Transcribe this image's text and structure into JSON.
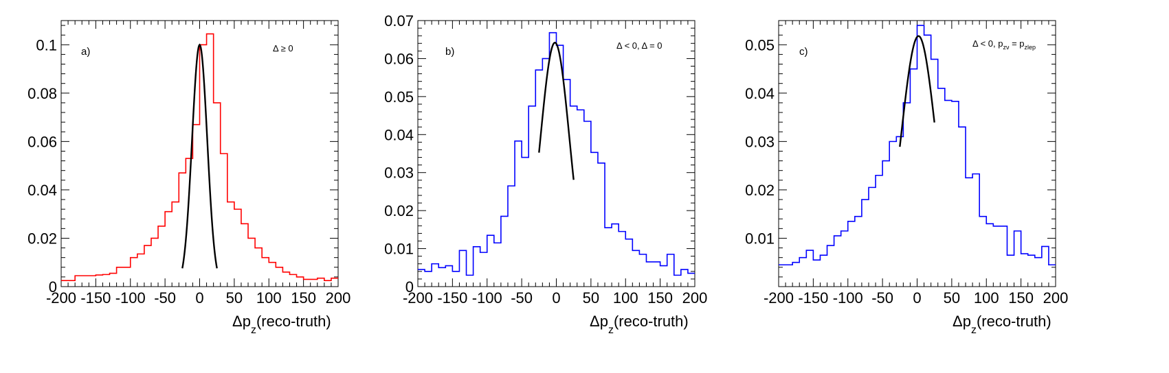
{
  "chart_data": [
    {
      "type": "histogram",
      "panel_label": "a)",
      "annotation": [
        {
          "text": "Δ ≥ 0",
          "sub": false
        }
      ],
      "xlabel": {
        "main": "Δp",
        "sub": "z",
        "rest": "(reco-truth)"
      },
      "xlim": [
        -200,
        200
      ],
      "ylim": [
        0,
        0.11
      ],
      "x_ticks": [
        "-200",
        "-150",
        "-100",
        "-50",
        "0",
        "50",
        "100",
        "150",
        "200"
      ],
      "x_tick_values": [
        -200,
        -150,
        -100,
        -50,
        0,
        50,
        100,
        150,
        200
      ],
      "y_ticks": [
        "0",
        "0.02",
        "0.04",
        "0.06",
        "0.08",
        "0.1"
      ],
      "y_tick_values": [
        0,
        0.02,
        0.04,
        0.06,
        0.08,
        0.1
      ],
      "line_color": "#ff0000",
      "bin_width": 10,
      "bin_start": -200,
      "values": [
        0.0025,
        0.0025,
        0.0045,
        0.0045,
        0.0045,
        0.0048,
        0.005,
        0.0055,
        0.008,
        0.008,
        0.012,
        0.0135,
        0.017,
        0.02,
        0.025,
        0.031,
        0.035,
        0.047,
        0.053,
        0.067,
        0.1,
        0.1045,
        0.076,
        0.055,
        0.035,
        0.032,
        0.026,
        0.02,
        0.016,
        0.012,
        0.01,
        0.008,
        0.006,
        0.005,
        0.004,
        0.003,
        0.003,
        0.0035,
        0.0025,
        0.0035
      ],
      "fit": {
        "mean": 0,
        "sigma": 11,
        "amplitude": 0.1,
        "range": [
          -25,
          25
        ]
      }
    },
    {
      "type": "histogram",
      "panel_label": "b)",
      "annotation": [
        {
          "text": "Δ < 0, Δ = 0",
          "sub": false
        }
      ],
      "xlabel": {
        "main": "Δp",
        "sub": "z",
        "rest": "(reco-truth)"
      },
      "xlim": [
        -200,
        200
      ],
      "ylim": [
        0,
        0.07
      ],
      "x_ticks": [
        "-200",
        "-150",
        "-100",
        "-50",
        "0",
        "50",
        "100",
        "150",
        "200"
      ],
      "x_tick_values": [
        -200,
        -150,
        -100,
        -50,
        0,
        50,
        100,
        150,
        200
      ],
      "y_ticks": [
        "0",
        "0.01",
        "0.02",
        "0.03",
        "0.04",
        "0.05",
        "0.06",
        "0.07"
      ],
      "y_tick_values": [
        0,
        0.01,
        0.02,
        0.03,
        0.04,
        0.05,
        0.06,
        0.07
      ],
      "line_color": "#0000ff",
      "bin_width": 10,
      "bin_start": -200,
      "values": [
        0.0045,
        0.004,
        0.006,
        0.005,
        0.0055,
        0.004,
        0.0095,
        0.003,
        0.0105,
        0.009,
        0.0135,
        0.0115,
        0.0185,
        0.0265,
        0.0383,
        0.034,
        0.0475,
        0.057,
        0.06,
        0.0668,
        0.0635,
        0.0545,
        0.0475,
        0.0465,
        0.0435,
        0.0353,
        0.0325,
        0.0155,
        0.0165,
        0.0145,
        0.0125,
        0.0095,
        0.0085,
        0.0065,
        0.0065,
        0.0055,
        0.0085,
        0.003,
        0.0045,
        0.0035
      ],
      "fit": {
        "mean": -2,
        "sigma": 21,
        "amplitude": 0.0642,
        "range": [
          -25,
          25
        ]
      }
    },
    {
      "type": "histogram",
      "panel_label": "c)",
      "annotation": [
        {
          "text": "Δ < 0, p",
          "sub": false
        },
        {
          "text": "zν",
          "sub": true
        },
        {
          "text": " = p",
          "sub": false
        },
        {
          "text": "zlep",
          "sub": true
        }
      ],
      "xlabel": {
        "main": "Δp",
        "sub": "z",
        "rest": "(reco-truth)"
      },
      "xlim": [
        -200,
        200
      ],
      "ylim": [
        0,
        0.055
      ],
      "x_ticks": [
        "-200",
        "-150",
        "-100",
        "-50",
        "0",
        "50",
        "100",
        "150",
        "200"
      ],
      "x_tick_values": [
        -200,
        -150,
        -100,
        -50,
        0,
        50,
        100,
        150,
        200
      ],
      "y_ticks": [
        "0.01",
        "0.02",
        "0.03",
        "0.04",
        "0.05"
      ],
      "y_tick_values": [
        0.01,
        0.02,
        0.03,
        0.04,
        0.05
      ],
      "line_color": "#0000ff",
      "bin_width": 10,
      "bin_start": -200,
      "values": [
        0.0045,
        0.0045,
        0.005,
        0.006,
        0.0075,
        0.0055,
        0.0065,
        0.0085,
        0.0105,
        0.0115,
        0.0135,
        0.0145,
        0.018,
        0.0205,
        0.023,
        0.026,
        0.03,
        0.031,
        0.038,
        0.045,
        0.054,
        0.052,
        0.047,
        0.041,
        0.0385,
        0.0383,
        0.033,
        0.0225,
        0.0233,
        0.0145,
        0.013,
        0.0125,
        0.0125,
        0.0065,
        0.0115,
        0.0068,
        0.0065,
        0.006,
        0.0083,
        0.0045
      ],
      "fit": {
        "mean": 2,
        "sigma": 25,
        "amplitude": 0.0518,
        "range": [
          -25,
          25
        ]
      }
    }
  ]
}
